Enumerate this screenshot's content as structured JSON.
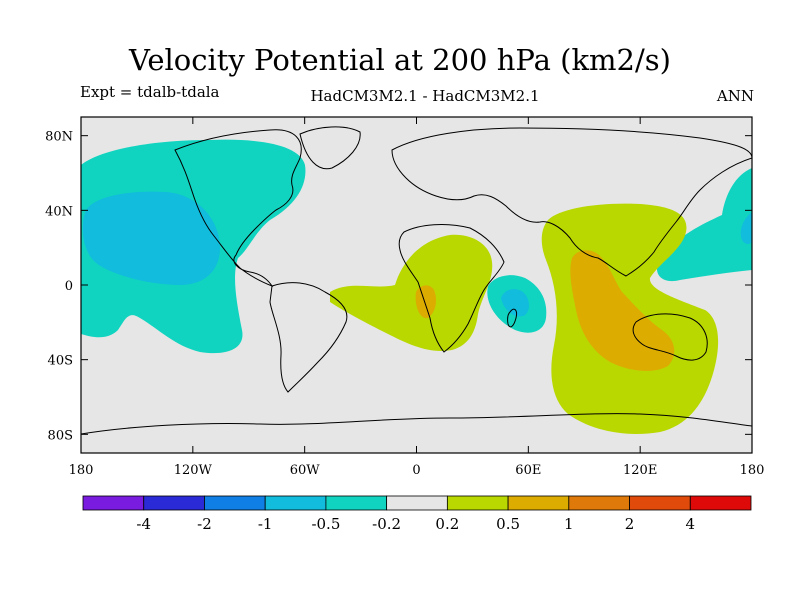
{
  "title": "Velocity Potential at 200 hPa (km2/s)",
  "expt": "Expt = tdalb-tdala",
  "model": "HadCM3M2.1 - HadCM3M2.1",
  "season": "ANN",
  "lat_ticks": [
    "80N",
    "40N",
    "0",
    "40S",
    "80S"
  ],
  "lon_ticks": [
    "180",
    "120W",
    "60W",
    "0",
    "60E",
    "120E",
    "180"
  ],
  "colorbar": {
    "colors": [
      "#7a1be0",
      "#2a2ad6",
      "#0f7fe6",
      "#11bcdc",
      "#10d4c0",
      "#e6e6e6",
      "#b9d800",
      "#dcac00",
      "#df7a0a",
      "#e04a0a",
      "#de0a0a"
    ],
    "labels": [
      "-4",
      "-2",
      "-1",
      "-0.5",
      "-0.2",
      "0.2",
      "0.5",
      "1",
      "2",
      "4"
    ]
  }
}
